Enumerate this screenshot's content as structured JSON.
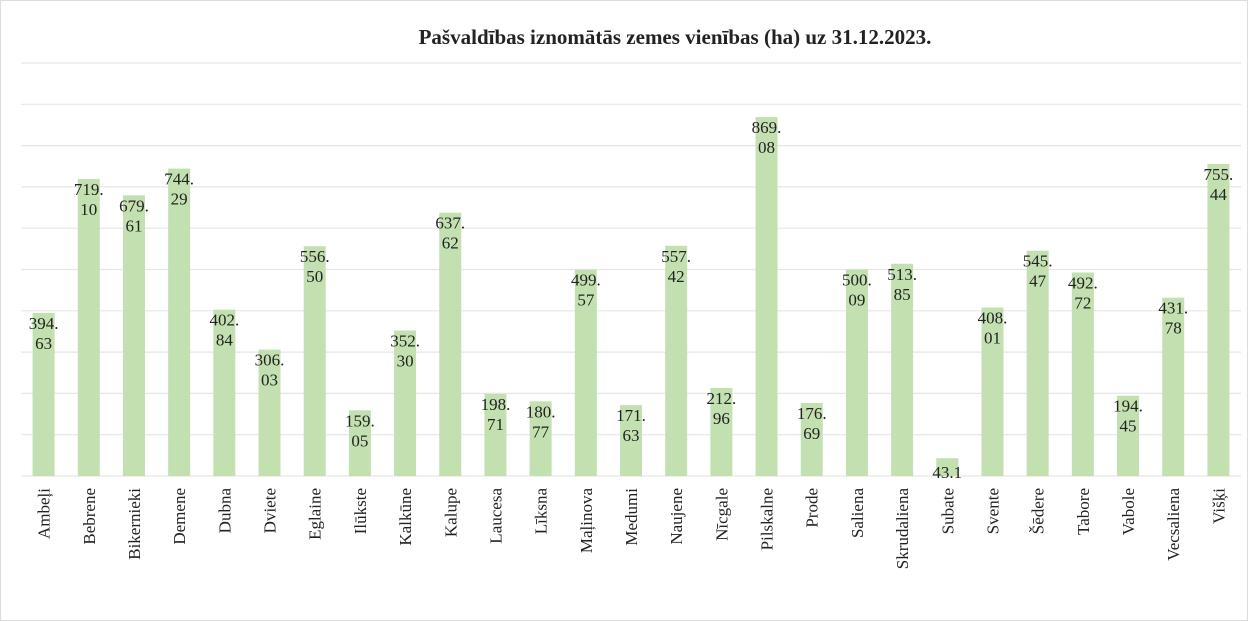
{
  "chart_data": {
    "type": "bar",
    "title": "Pašvaldības iznomātās zemes vienības (ha) uz 31.12.2023.",
    "categories": [
      "Ambeļi",
      "Bebrene",
      "Bikernieki",
      "Demene",
      "Dubna",
      "Dviete",
      "Eglaine",
      "Ilūkste",
      "Kalkūne",
      "Kalupe",
      "Laucesa",
      "Līksna",
      "Maļinova",
      "Medumi",
      "Naujene",
      "Nīcgale",
      "Pilskalne",
      "Prode",
      "Saliena",
      "Skrudaliena",
      "Subate",
      "Svente",
      "Šēdere",
      "Tabore",
      "Vabole",
      "Vecsaliena",
      "Višķi"
    ],
    "values": [
      394.63,
      719.1,
      679.61,
      744.29,
      402.84,
      306.03,
      556.5,
      159.05,
      352.3,
      637.62,
      198.71,
      180.77,
      499.57,
      171.63,
      557.42,
      212.96,
      869.08,
      176.69,
      500.09,
      513.85,
      43.1,
      408.01,
      545.47,
      492.72,
      194.45,
      431.78,
      755.44
    ],
    "value_labels": [
      "394.63",
      "719.10",
      "679.61",
      "744.29",
      "402.84",
      "306.03",
      "556.50",
      "159.05",
      "352.30",
      "637.62",
      "198.71",
      "180.77",
      "499.57",
      "171.63",
      "557.42",
      "212.96",
      "869.08",
      "176.69",
      "500.09",
      "513.85",
      "43.1",
      "408.01",
      "545.47",
      "492.72",
      "194.45",
      "431.78",
      "755.44"
    ],
    "color": "#c3e0b0",
    "ylim": [
      0,
      1000
    ],
    "yticks": [
      0,
      100,
      200,
      300,
      400,
      500,
      600,
      700,
      800,
      900,
      1000
    ],
    "grid": true
  }
}
